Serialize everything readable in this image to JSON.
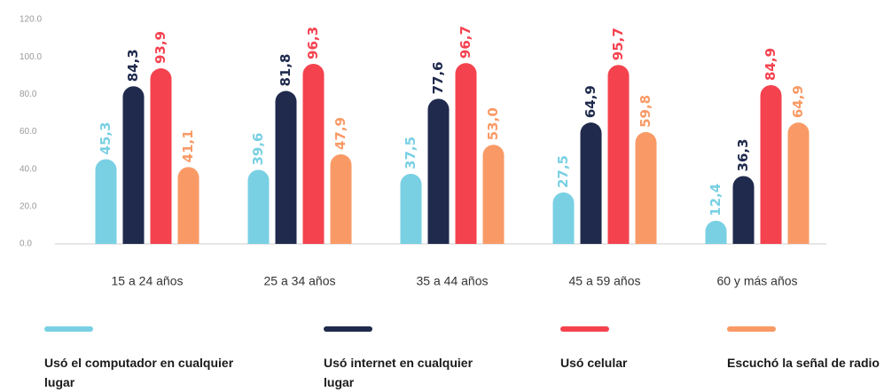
{
  "chart_data": {
    "type": "bar",
    "categories": [
      "15 a 24 años",
      "25 a 34 años",
      "35 a 44 años",
      "45 a 59 años",
      "60 y más años"
    ],
    "series": [
      {
        "name": "Usó el computador en cualquier lugar",
        "color": "#79d0e3",
        "values": [
          45.3,
          39.6,
          37.5,
          27.5,
          12.4
        ],
        "value_labels": [
          "45,3",
          "39,6",
          "37,5",
          "27,5",
          "12,4"
        ]
      },
      {
        "name": "Usó internet en cualquier lugar",
        "color": "#1f2a4d",
        "values": [
          84.3,
          81.8,
          77.6,
          64.9,
          36.3
        ],
        "value_labels": [
          "84,3",
          "81,8",
          "77,6",
          "64,9",
          "36,3"
        ]
      },
      {
        "name": "Usó celular",
        "color": "#f5424f",
        "values": [
          93.9,
          96.3,
          96.7,
          95.7,
          84.9
        ],
        "value_labels": [
          "93,9",
          "96,3",
          "96,7",
          "95,7",
          "84,9"
        ]
      },
      {
        "name": "Escuchó la señal de radio",
        "color": "#f99a66",
        "values": [
          41.1,
          47.9,
          53.0,
          59.8,
          64.9
        ],
        "value_labels": [
          "41,1",
          "47,9",
          "53,0",
          "59,8",
          "64,9"
        ]
      }
    ],
    "ylim": [
      0,
      120
    ],
    "yticks": [
      {
        "value": 0,
        "label": "0.0"
      },
      {
        "value": 20,
        "label": "20.0"
      },
      {
        "value": 40,
        "label": "40.0"
      },
      {
        "value": 60,
        "label": "60.0"
      },
      {
        "value": 80,
        "label": "80.0"
      },
      {
        "value": 100,
        "label": "100.0"
      },
      {
        "value": 120,
        "label": "120.0"
      }
    ],
    "grid": false,
    "legend": "bottom"
  }
}
